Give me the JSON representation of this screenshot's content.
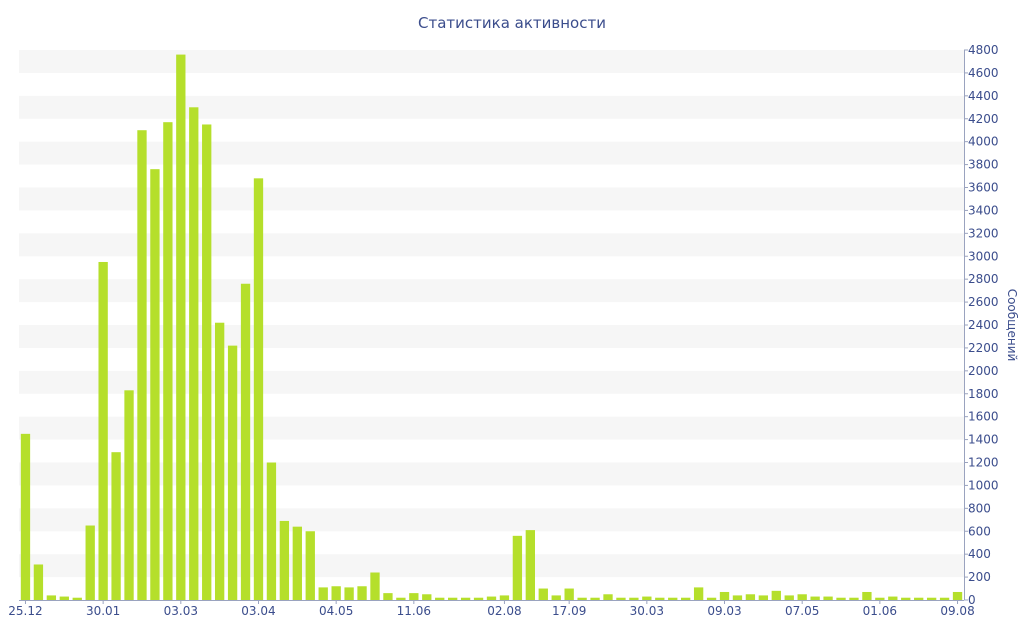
{
  "chart_data": {
    "type": "bar",
    "title": "Статистика активности",
    "xlabel": "",
    "ylabel": "Сообщений",
    "ylim": [
      0,
      4800
    ],
    "y_ticks": [
      0,
      200,
      400,
      600,
      800,
      1000,
      1200,
      1400,
      1600,
      1800,
      2000,
      2200,
      2400,
      2600,
      2800,
      3000,
      3200,
      3400,
      3600,
      3800,
      4000,
      4200,
      4400,
      4600,
      4800
    ],
    "x_tick_labels": [
      "25.12",
      "30.01",
      "03.03",
      "03.04",
      "04.05",
      "11.06",
      "02.08",
      "17.09",
      "30.03",
      "09.03",
      "07.05",
      "01.06",
      "09.08"
    ],
    "x_tick_indices": [
      0,
      6,
      12,
      18,
      24,
      30,
      37,
      42,
      48,
      54,
      60,
      66,
      72
    ],
    "grid": true,
    "bar_color": "#b5df2b",
    "stripe_color": "#f6f6f6",
    "text_color": "#3b4d8c",
    "values": [
      1450,
      310,
      40,
      30,
      20,
      650,
      2950,
      1290,
      1830,
      4100,
      3760,
      4170,
      4760,
      4300,
      4150,
      2420,
      2220,
      2760,
      3680,
      1200,
      690,
      640,
      600,
      110,
      120,
      110,
      120,
      240,
      60,
      20,
      60,
      50,
      20,
      20,
      20,
      20,
      30,
      40,
      560,
      610,
      100,
      40,
      100,
      20,
      20,
      50,
      20,
      20,
      30,
      20,
      20,
      20,
      110,
      20,
      70,
      40,
      50,
      40,
      80,
      40,
      50,
      30,
      30,
      20,
      20,
      70,
      20,
      30,
      20,
      20,
      20,
      20,
      70
    ]
  }
}
